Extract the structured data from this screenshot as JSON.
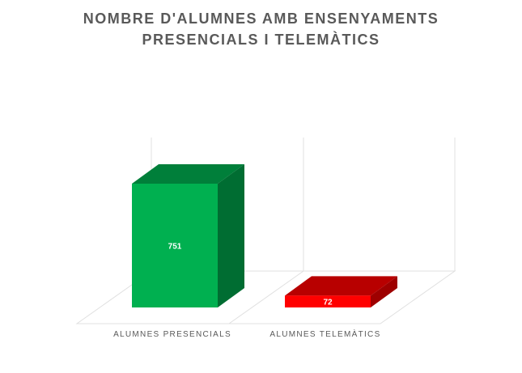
{
  "chart_data": {
    "type": "bar3d",
    "title": "NOMBRE D'ALUMNES AMB ENSENYAMENTS PRESENCIALS I TELEMÀTICS",
    "categories": [
      "ALUMNES PRESENCIALS",
      "ALUMNES TELEMÀTICS"
    ],
    "values": [
      751,
      72
    ],
    "colors": [
      "#00b050",
      "#ff0000"
    ]
  }
}
